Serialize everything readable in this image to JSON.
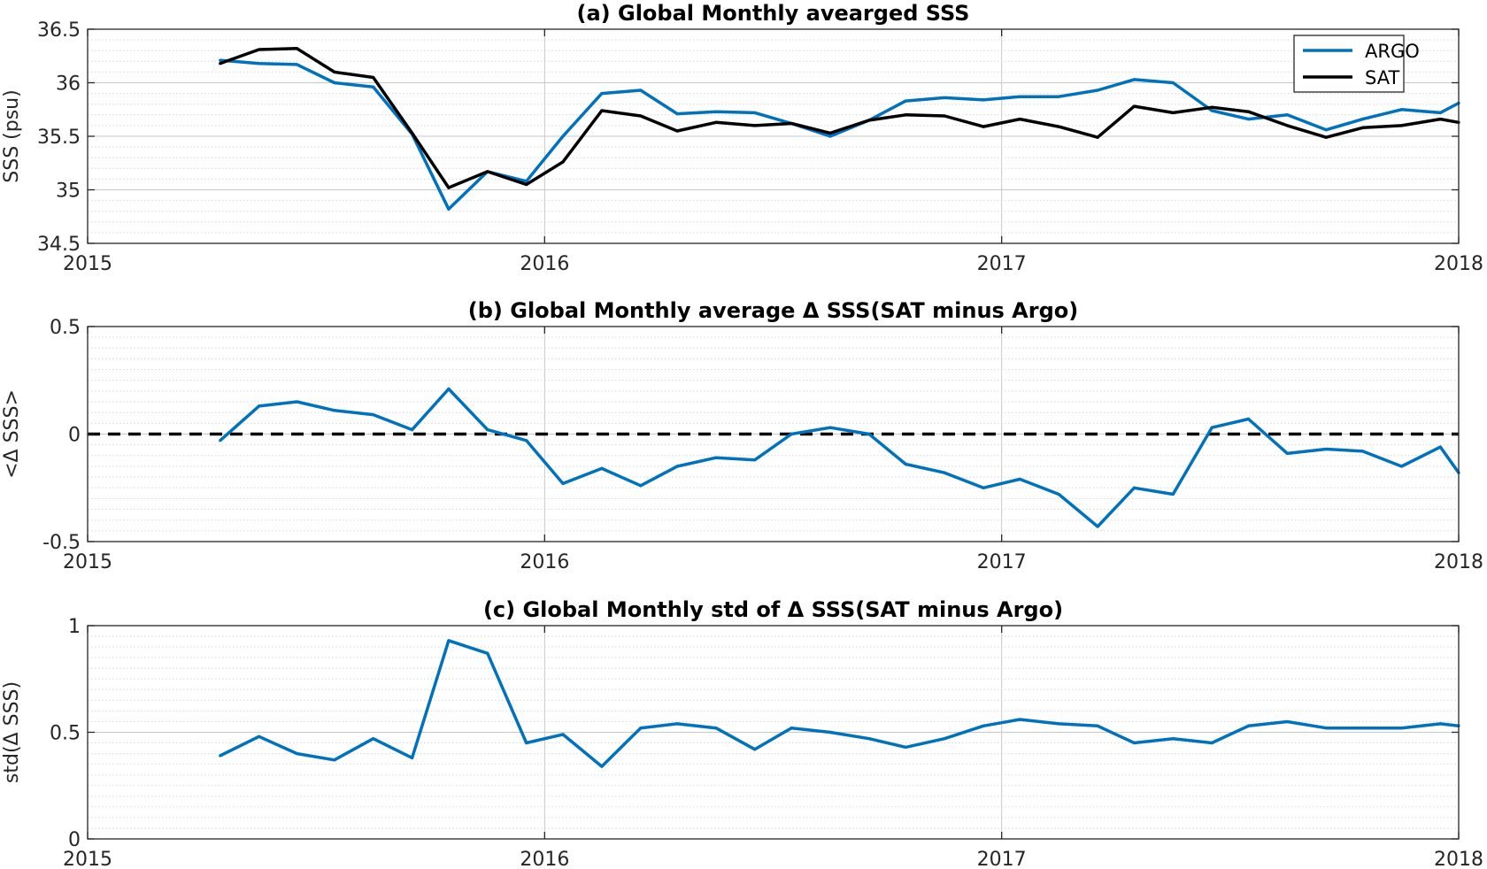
{
  "colors": {
    "argo": "#0072BD",
    "sat": "#000000",
    "zero_line": "#000000",
    "axis": "#262626",
    "minor_grid": "#D9D9D9",
    "major_grid": "#C8C8C8"
  },
  "chart_data": [
    {
      "type": "line",
      "title": "(a) Global Monthly avearged SSS",
      "xlabel": "",
      "ylabel": "SSS (psu)",
      "xlim": [
        2015,
        2018
      ],
      "ylim": [
        34.5,
        36.5
      ],
      "xticks": [
        "2015",
        "2016",
        "2017",
        "2018"
      ],
      "yticks": [
        "34.5",
        "35",
        "35.5",
        "36",
        "36.5"
      ],
      "grid": "major on, minor dotted",
      "legend_position": "top-right",
      "x": [
        2015.29,
        2015.375,
        2015.458,
        2015.54,
        2015.625,
        2015.71,
        2015.79,
        2015.875,
        2015.96,
        2016.04,
        2016.125,
        2016.21,
        2016.29,
        2016.375,
        2016.46,
        2016.54,
        2016.625,
        2016.71,
        2016.79,
        2016.875,
        2016.96,
        2017.04,
        2017.125,
        2017.21,
        2017.29,
        2017.375,
        2017.46,
        2017.54,
        2017.625,
        2017.71,
        2017.79,
        2017.875,
        2017.96,
        2018.0
      ],
      "series": [
        {
          "name": "ARGO",
          "values": [
            36.21,
            36.18,
            36.17,
            36.0,
            35.96,
            35.52,
            34.82,
            35.17,
            35.08,
            35.5,
            35.9,
            35.93,
            35.71,
            35.73,
            35.72,
            35.62,
            35.5,
            35.65,
            35.83,
            35.86,
            35.84,
            35.87,
            35.87,
            35.93,
            36.03,
            36.0,
            35.74,
            35.66,
            35.7,
            35.56,
            35.66,
            35.75,
            35.72,
            35.81
          ]
        },
        {
          "name": "SAT",
          "values": [
            36.18,
            36.31,
            36.32,
            36.1,
            36.05,
            35.53,
            35.02,
            35.17,
            35.05,
            35.26,
            35.74,
            35.69,
            35.55,
            35.63,
            35.6,
            35.62,
            35.53,
            35.65,
            35.7,
            35.69,
            35.59,
            35.66,
            35.59,
            35.49,
            35.78,
            35.72,
            35.77,
            35.73,
            35.6,
            35.49,
            35.58,
            35.6,
            35.66,
            35.63
          ]
        }
      ]
    },
    {
      "type": "line",
      "title": "(b) Global Monthly average Δ SSS(SAT minus Argo)",
      "xlabel": "",
      "ylabel": "<Δ SSS>",
      "xlim": [
        2015,
        2018
      ],
      "ylim": [
        -0.5,
        0.5
      ],
      "xticks": [
        "2015",
        "2016",
        "2017",
        "2018"
      ],
      "yticks": [
        "-0.5",
        "0",
        "0.5"
      ],
      "grid": "major on, minor dotted",
      "reference_line": {
        "y": 0,
        "style": "dashed"
      },
      "x": [
        2015.29,
        2015.375,
        2015.458,
        2015.54,
        2015.625,
        2015.71,
        2015.79,
        2015.875,
        2015.96,
        2016.04,
        2016.125,
        2016.21,
        2016.29,
        2016.375,
        2016.46,
        2016.54,
        2016.625,
        2016.71,
        2016.79,
        2016.875,
        2016.96,
        2017.04,
        2017.125,
        2017.21,
        2017.29,
        2017.375,
        2017.46,
        2017.54,
        2017.625,
        2017.71,
        2017.79,
        2017.875,
        2017.96,
        2018.0
      ],
      "series": [
        {
          "values": [
            -0.03,
            0.13,
            0.15,
            0.11,
            0.09,
            0.02,
            0.21,
            0.02,
            -0.03,
            -0.23,
            -0.16,
            -0.24,
            -0.15,
            -0.11,
            -0.12,
            0.0,
            0.03,
            0.0,
            -0.14,
            -0.18,
            -0.25,
            -0.21,
            -0.28,
            -0.43,
            -0.25,
            -0.28,
            0.03,
            0.07,
            -0.09,
            -0.07,
            -0.08,
            -0.15,
            -0.06,
            -0.18
          ]
        }
      ]
    },
    {
      "type": "line",
      "title": "(c) Global Monthly std of Δ SSS(SAT minus Argo)",
      "xlabel": "",
      "ylabel": "std(Δ SSS)",
      "xlim": [
        2015,
        2018
      ],
      "ylim": [
        0,
        1
      ],
      "xticks": [
        "2015",
        "2016",
        "2017",
        "2018"
      ],
      "yticks": [
        "0",
        "0.5",
        "1"
      ],
      "grid": "major on, minor dotted",
      "x": [
        2015.29,
        2015.375,
        2015.458,
        2015.54,
        2015.625,
        2015.71,
        2015.79,
        2015.875,
        2015.96,
        2016.04,
        2016.125,
        2016.21,
        2016.29,
        2016.375,
        2016.46,
        2016.54,
        2016.625,
        2016.71,
        2016.79,
        2016.875,
        2016.96,
        2017.04,
        2017.125,
        2017.21,
        2017.29,
        2017.375,
        2017.46,
        2017.54,
        2017.625,
        2017.71,
        2017.79,
        2017.875,
        2017.96,
        2018.0
      ],
      "series": [
        {
          "values": [
            0.39,
            0.48,
            0.4,
            0.37,
            0.47,
            0.38,
            0.93,
            0.87,
            0.45,
            0.49,
            0.34,
            0.52,
            0.54,
            0.52,
            0.42,
            0.52,
            0.5,
            0.47,
            0.43,
            0.47,
            0.53,
            0.56,
            0.54,
            0.53,
            0.45,
            0.47,
            0.45,
            0.53,
            0.55,
            0.52,
            0.52,
            0.52,
            0.54,
            0.53
          ]
        }
      ]
    }
  ]
}
